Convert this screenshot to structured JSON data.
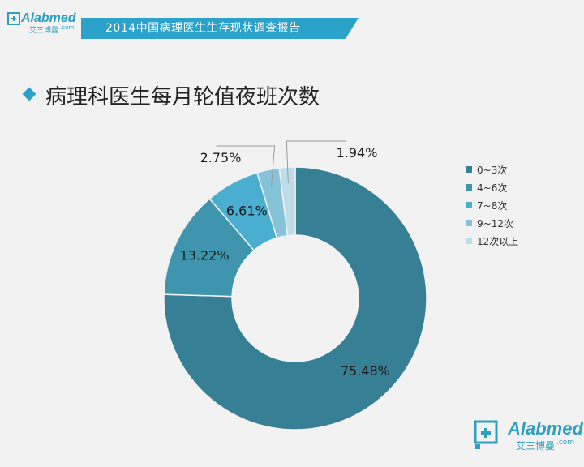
{
  "header": {
    "report_title": "2014中国病理医生生存现状调查报告",
    "logo_brand": "Alabmed",
    "logo_cn": "艾三博曼",
    "logo_domain": ".com"
  },
  "page": {
    "title": "病理科医生每月轮值夜班次数"
  },
  "colors": {
    "banner": "#2ba2c9",
    "accent": "#2ba2c9",
    "background": "#f2f2f2"
  },
  "chart_data": {
    "type": "pie",
    "donut": true,
    "categories": [
      "0~3次",
      "4~6次",
      "7~8次",
      "9~12次",
      "12次以上"
    ],
    "values": [
      75.48,
      13.22,
      6.61,
      2.75,
      1.94
    ],
    "labels": [
      "75.48%",
      "13.22%",
      "6.61%",
      "2.75%",
      "1.94%"
    ],
    "colors": [
      "#367f95",
      "#3f95ae",
      "#4aaed0",
      "#86c3d8",
      "#bfdde9"
    ],
    "title": "",
    "legend_position": "right"
  },
  "footer": {
    "logo_brand": "Alabmed",
    "logo_cn": "艾三博曼",
    "logo_domain": ".com"
  }
}
